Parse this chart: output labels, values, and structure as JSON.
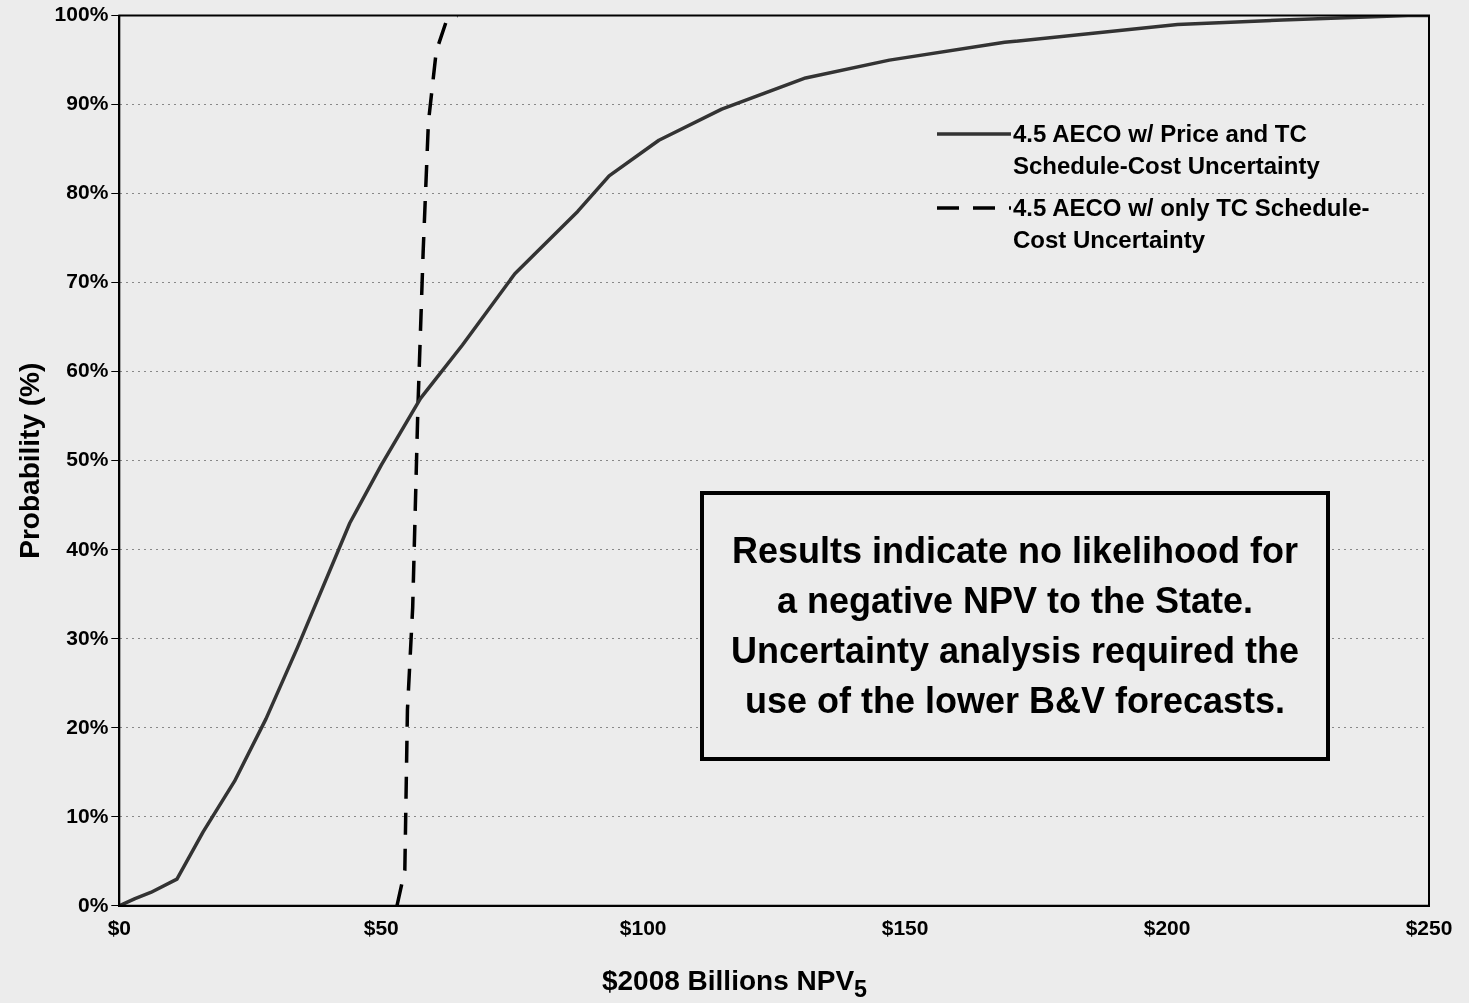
{
  "chart_data": {
    "type": "line",
    "xlabel": "$2008 Billions NPV$_{5}$",
    "ylabel": "Probability (%)",
    "xlim": [
      0,
      250
    ],
    "xticks": [
      {
        "value": 0,
        "label": "$0"
      },
      {
        "value": 50,
        "label": "$50"
      },
      {
        "value": 100,
        "label": "$100"
      },
      {
        "value": 150,
        "label": "$150"
      },
      {
        "value": 200,
        "label": "$200"
      },
      {
        "value": 250,
        "label": "$250"
      }
    ],
    "ylim": [
      0,
      100
    ],
    "yticks": [
      {
        "value": 0,
        "label": "0%"
      },
      {
        "value": 10,
        "label": "10%"
      },
      {
        "value": 20,
        "label": "20%"
      },
      {
        "value": 30,
        "label": "30%"
      },
      {
        "value": 40,
        "label": "40%"
      },
      {
        "value": 50,
        "label": "50%"
      },
      {
        "value": 60,
        "label": "60%"
      },
      {
        "value": 70,
        "label": "70%"
      },
      {
        "value": 80,
        "label": "80%"
      },
      {
        "value": 90,
        "label": "90%"
      },
      {
        "value": 100,
        "label": "100%"
      }
    ],
    "grid": "y",
    "legend": "top right",
    "marker": "none",
    "series": [
      {
        "name": "4.5 AECO w/ Price and TC Schedule-Cost Uncertainty",
        "color": "#333333",
        "line_style": "solid",
        "x": [
          0,
          3,
          6,
          11,
          16,
          22,
          28,
          34,
          44,
          50,
          57.5,
          65.5,
          75.5,
          87.5,
          93.5,
          103,
          115,
          131,
          147,
          169,
          202,
          222,
          246,
          250
        ],
        "values": [
          0,
          0.8,
          1.5,
          3,
          8.3,
          14,
          21,
          29,
          43,
          49.5,
          57,
          63,
          71,
          78,
          82,
          86,
          89.5,
          93,
          95,
          97,
          99,
          99.5,
          100,
          100
        ]
      },
      {
        "name": "4.5 AECO w/ only TC Schedule-Cost Uncertainty",
        "color": "#000000",
        "line_style": "dashed",
        "x": [
          53,
          54.5,
          55,
          56,
          57,
          58,
          59,
          60.5,
          62.5,
          64.5
        ],
        "values": [
          0,
          4,
          22,
          33.5,
          56,
          73.5,
          88,
          96,
          99.5,
          100
        ]
      }
    ],
    "annotations": [
      "Results indicate no likelihood for a negative NPV to the State.  Uncertainty analysis required the use of the lower B&V forecasts."
    ]
  }
}
